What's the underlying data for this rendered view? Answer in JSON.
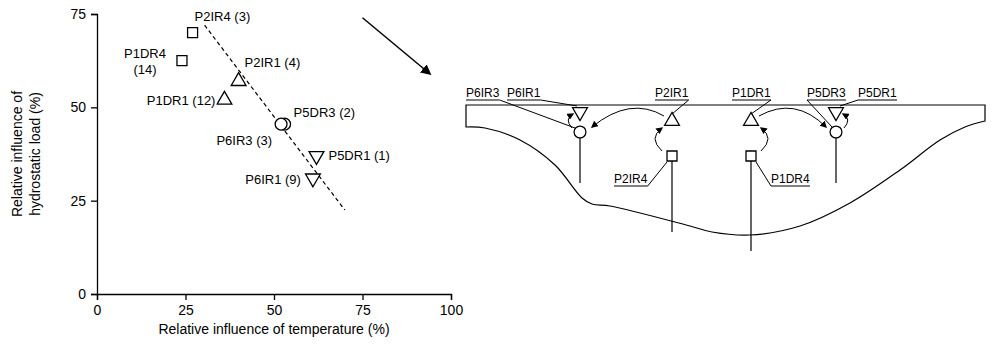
{
  "chart_data": {
    "type": "scatter",
    "xlabel": "Relative influence of temperature (%)",
    "ylabel": "Relative influence of hydrostatic load (%)",
    "xlim": [
      0,
      100
    ],
    "ylim": [
      0,
      75
    ],
    "xticks": [
      0,
      25,
      50,
      75,
      100
    ],
    "yticks": [
      0,
      25,
      50,
      75
    ],
    "series": [
      {
        "marker": "square",
        "color": "#000000",
        "x": [
          27,
          24
        ],
        "y": [
          70,
          62.5
        ],
        "labels": [
          "P2IR4 (3)",
          "P1DR4 (14)"
        ]
      },
      {
        "marker": "triangle-up",
        "color": "#000000",
        "x": [
          40,
          36
        ],
        "y": [
          57,
          52
        ],
        "labels": [
          "P2IR1 (4)",
          "P1DR1 (12)"
        ]
      },
      {
        "marker": "circle",
        "color": "#000000",
        "x": [
          53,
          52
        ],
        "y": [
          45.5,
          45.5
        ],
        "labels": [
          "P5DR3 (2)",
          "P6IR3 (3)"
        ]
      },
      {
        "marker": "triangle-down",
        "color": "#000000",
        "x": [
          62,
          61
        ],
        "y": [
          37,
          31
        ],
        "labels": [
          "P5DR1 (1)",
          "P6IR1 (9)"
        ]
      }
    ],
    "trend_line": {
      "x": [
        28,
        70
      ],
      "y": [
        75,
        22.5
      ],
      "line_style": "dashed",
      "color": "#000000"
    },
    "arrow": {
      "x": [
        75,
        94
      ],
      "y": [
        74,
        59
      ],
      "color": "#000000"
    }
  },
  "diagram": {
    "labels": [
      "P6IR3",
      "P6IR1",
      "P2IR1",
      "P2IR4",
      "P1DR1",
      "P1DR4",
      "P5DR3",
      "P5DR1"
    ]
  }
}
